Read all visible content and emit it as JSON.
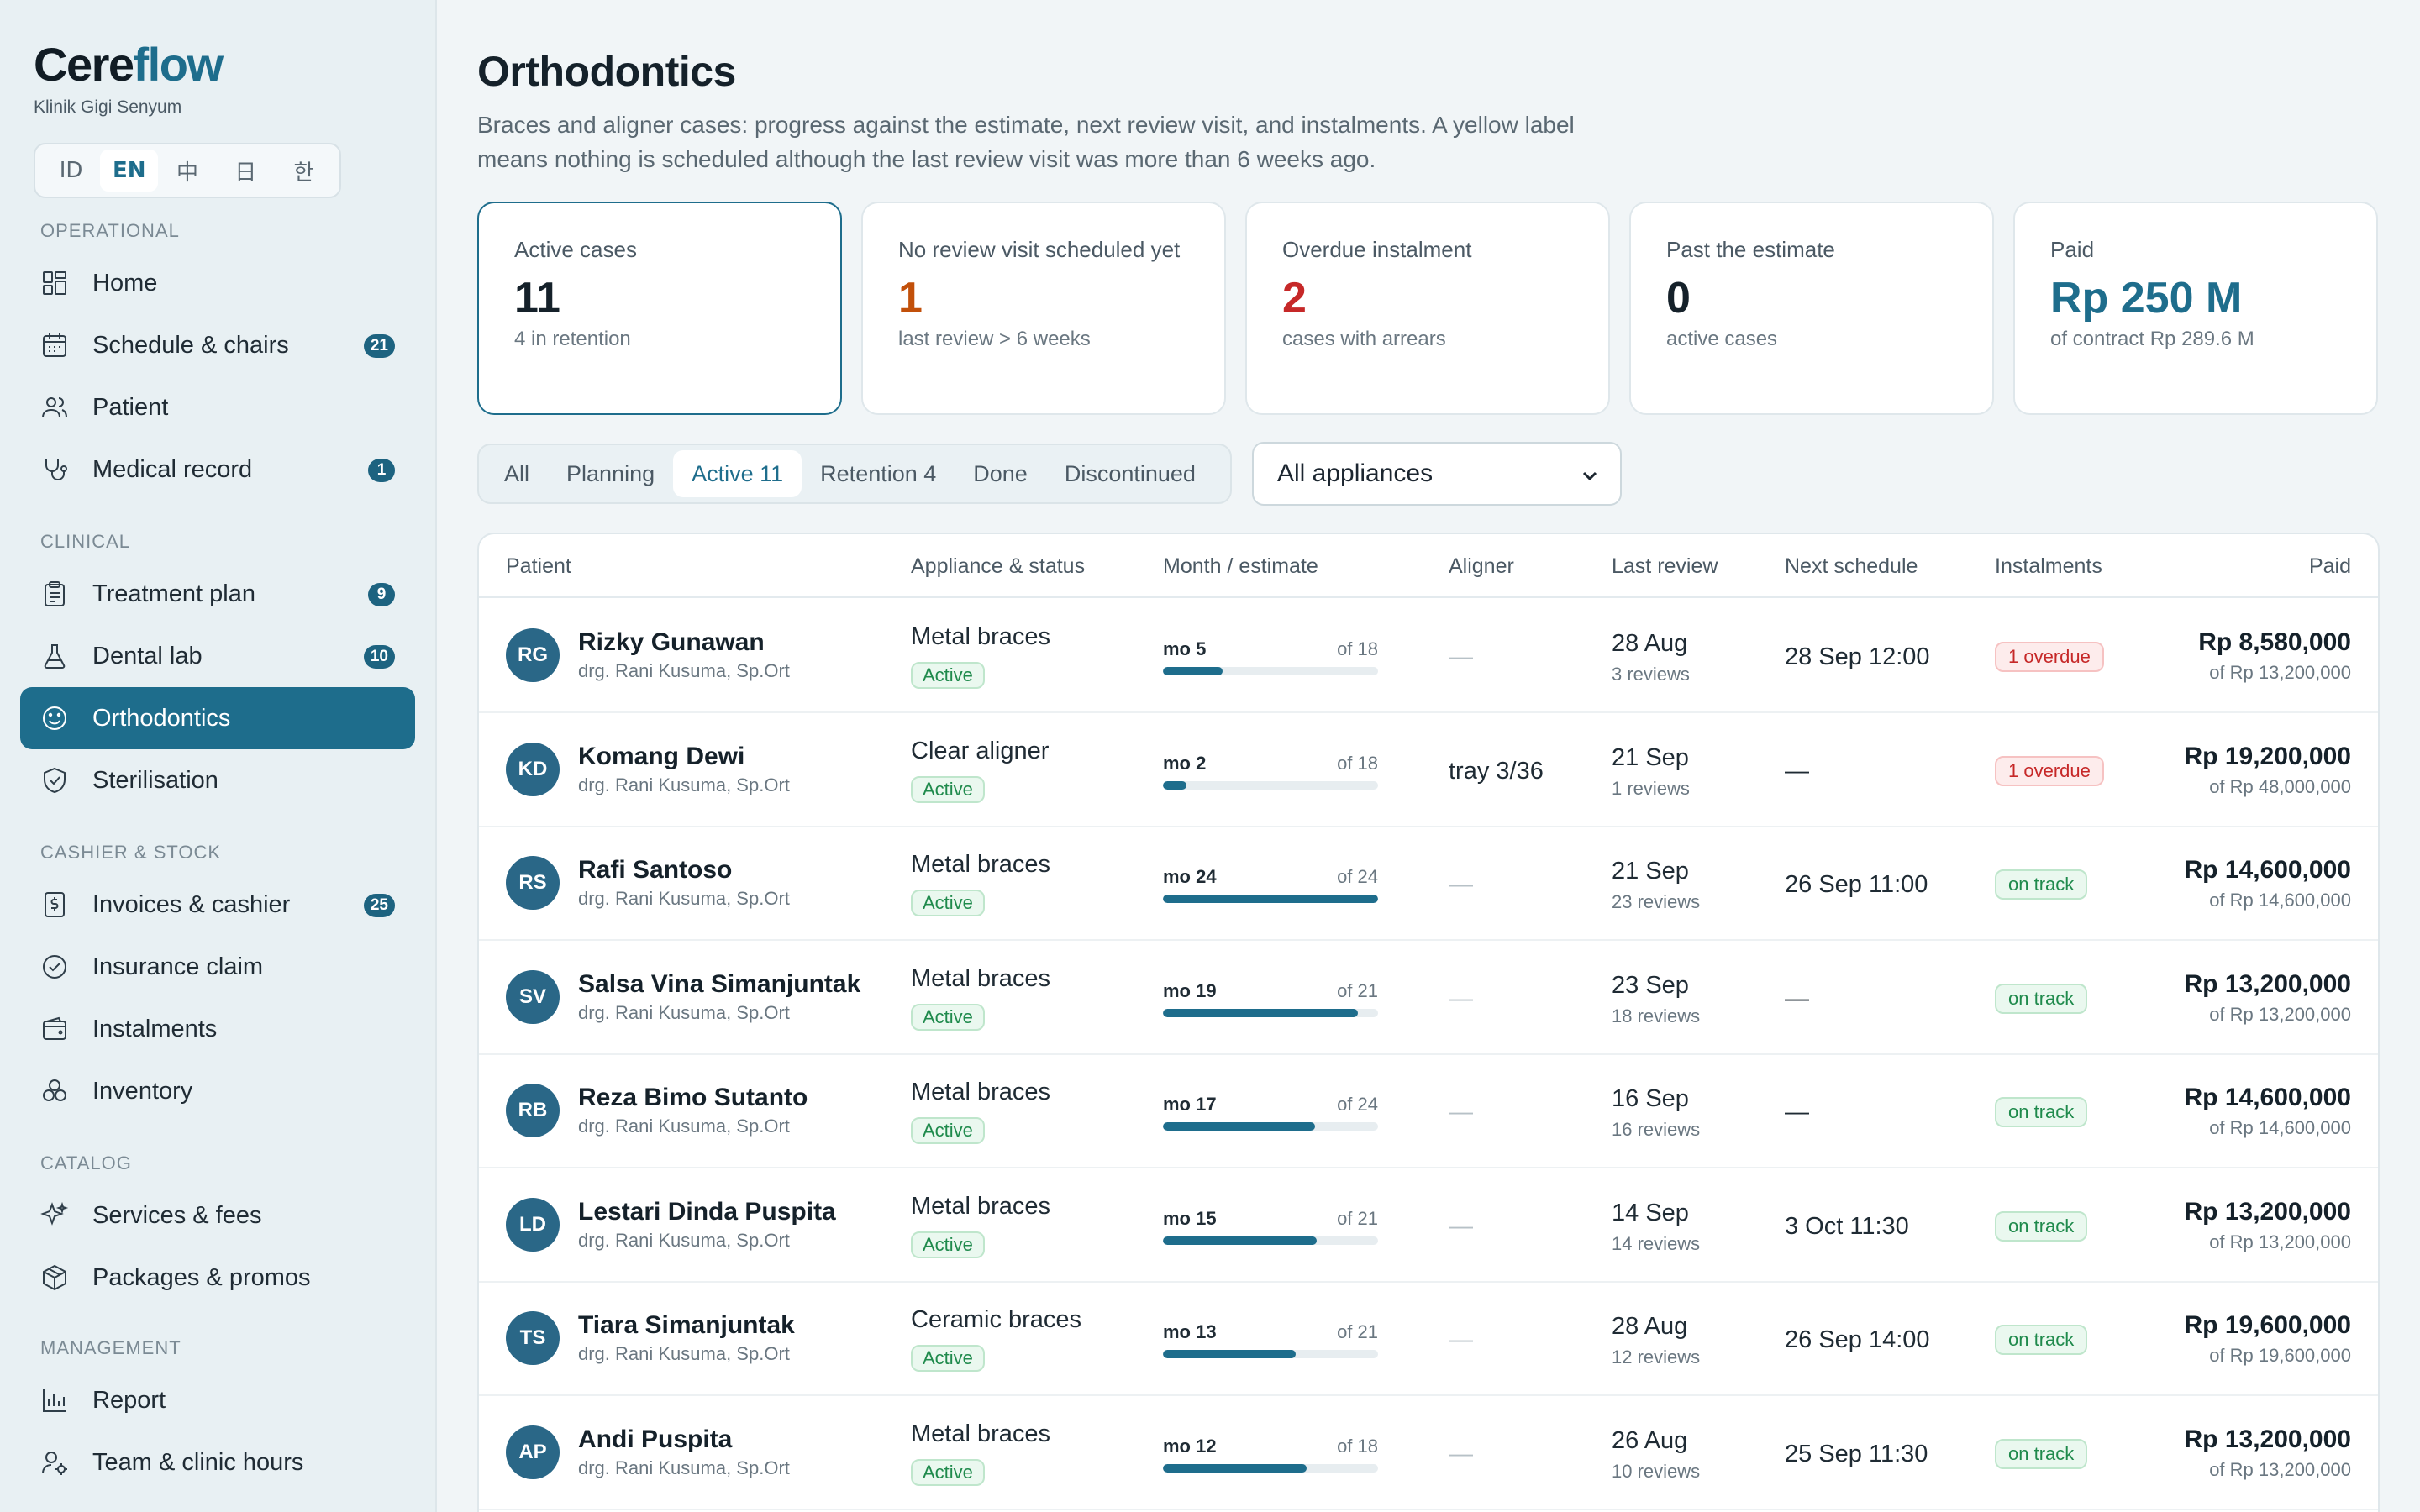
{
  "brand": {
    "name_part1": "Cere",
    "name_part2": "flow",
    "clinic": "Klinik Gigi Senyum"
  },
  "languages": [
    {
      "label": "ID",
      "active": false
    },
    {
      "label": "EN",
      "active": true
    },
    {
      "label": "中",
      "active": false
    },
    {
      "label": "日",
      "active": false
    },
    {
      "label": "한",
      "active": false
    }
  ],
  "sidebar": {
    "sections": [
      {
        "title": "OPERATIONAL",
        "items": [
          {
            "label": "Home",
            "icon": "home-grid-icon",
            "badge": ""
          },
          {
            "label": "Schedule & chairs",
            "icon": "calendar-icon",
            "badge": "21"
          },
          {
            "label": "Patient",
            "icon": "users-icon",
            "badge": ""
          },
          {
            "label": "Medical record",
            "icon": "stethoscope-icon",
            "badge": "1"
          }
        ]
      },
      {
        "title": "CLINICAL",
        "items": [
          {
            "label": "Treatment plan",
            "icon": "clipboard-icon",
            "badge": "9"
          },
          {
            "label": "Dental lab",
            "icon": "flask-icon",
            "badge": "10"
          },
          {
            "label": "Orthodontics",
            "icon": "smile-icon",
            "badge": "",
            "active": true
          },
          {
            "label": "Sterilisation",
            "icon": "shield-check-icon",
            "badge": ""
          }
        ]
      },
      {
        "title": "CASHIER & STOCK",
        "items": [
          {
            "label": "Invoices & cashier",
            "icon": "receipt-dollar-icon",
            "badge": "25"
          },
          {
            "label": "Insurance claim",
            "icon": "check-badge-icon",
            "badge": ""
          },
          {
            "label": "Instalments",
            "icon": "wallet-icon",
            "badge": ""
          },
          {
            "label": "Inventory",
            "icon": "boxes-icon",
            "badge": ""
          }
        ]
      },
      {
        "title": "CATALOG",
        "items": [
          {
            "label": "Services & fees",
            "icon": "sparkles-icon",
            "badge": ""
          },
          {
            "label": "Packages & promos",
            "icon": "package-icon",
            "badge": ""
          }
        ]
      },
      {
        "title": "MANAGEMENT",
        "items": [
          {
            "label": "Report",
            "icon": "bar-chart-icon",
            "badge": ""
          },
          {
            "label": "Team & clinic hours",
            "icon": "user-cog-icon",
            "badge": ""
          }
        ]
      }
    ]
  },
  "header": {
    "title": "Orthodontics",
    "description": "Braces and aligner cases: progress against the estimate, next review visit, and instalments. A yellow label means nothing is scheduled although the last review visit was more than 6 weeks ago."
  },
  "kpis": [
    {
      "label": "Active cases",
      "value": "11",
      "sub": "4 in retention",
      "color": "#15212a",
      "selected": true
    },
    {
      "label": "No review visit scheduled yet",
      "value": "1",
      "sub": "last review > 6 weeks",
      "color": "#c2500a",
      "selected": false
    },
    {
      "label": "Overdue instalment",
      "value": "2",
      "sub": "cases with arrears",
      "color": "#c62828",
      "selected": false
    },
    {
      "label": "Past the estimate",
      "value": "0",
      "sub": "active cases",
      "color": "#15212a",
      "selected": false
    },
    {
      "label": "Paid",
      "value": "Rp 250 M",
      "sub": "of contract Rp 289.6 M",
      "color": "#1e6d8c",
      "selected": false
    }
  ],
  "tabs": [
    {
      "label": "All",
      "active": false
    },
    {
      "label": "Planning",
      "active": false
    },
    {
      "label": "Active 11",
      "active": true
    },
    {
      "label": "Retention 4",
      "active": false
    },
    {
      "label": "Done",
      "active": false
    },
    {
      "label": "Discontinued",
      "active": false
    }
  ],
  "filter": {
    "selected": "All appliances"
  },
  "table": {
    "columns": [
      "Patient",
      "Appliance & status",
      "Month / estimate",
      "Aligner",
      "Last review",
      "Next schedule",
      "Instalments",
      "Paid"
    ],
    "rows": [
      {
        "initials": "RG",
        "name": "Rizky Gunawan",
        "doctor": "drg. Rani Kusuma, Sp.Ort",
        "appliance": "Metal braces",
        "status": "Active",
        "month": "mo 5",
        "estimate": "of 18",
        "progress": 0.278,
        "aligner": "—",
        "last_review": "28 Aug",
        "reviews": "3 reviews",
        "next": "28 Sep 12:00",
        "instalment": "1 overdue",
        "inst_state": "overdue",
        "paid": "Rp 8,580,000",
        "contract": "of Rp 13,200,000"
      },
      {
        "initials": "KD",
        "name": "Komang Dewi",
        "doctor": "drg. Rani Kusuma, Sp.Ort",
        "appliance": "Clear aligner",
        "status": "Active",
        "month": "mo 2",
        "estimate": "of 18",
        "progress": 0.111,
        "aligner": "tray 3/36",
        "last_review": "21 Sep",
        "reviews": "1 reviews",
        "next": "—",
        "instalment": "1 overdue",
        "inst_state": "overdue",
        "paid": "Rp 19,200,000",
        "contract": "of Rp 48,000,000"
      },
      {
        "initials": "RS",
        "name": "Rafi Santoso",
        "doctor": "drg. Rani Kusuma, Sp.Ort",
        "appliance": "Metal braces",
        "status": "Active",
        "month": "mo 24",
        "estimate": "of 24",
        "progress": 1.0,
        "aligner": "—",
        "last_review": "21 Sep",
        "reviews": "23 reviews",
        "next": "26 Sep 11:00",
        "instalment": "on track",
        "inst_state": "ok",
        "paid": "Rp 14,600,000",
        "contract": "of Rp 14,600,000"
      },
      {
        "initials": "SV",
        "name": "Salsa Vina Simanjuntak",
        "doctor": "drg. Rani Kusuma, Sp.Ort",
        "appliance": "Metal braces",
        "status": "Active",
        "month": "mo 19",
        "estimate": "of 21",
        "progress": 0.905,
        "aligner": "—",
        "last_review": "23 Sep",
        "reviews": "18 reviews",
        "next": "—",
        "instalment": "on track",
        "inst_state": "ok",
        "paid": "Rp 13,200,000",
        "contract": "of Rp 13,200,000"
      },
      {
        "initials": "RB",
        "name": "Reza Bimo Sutanto",
        "doctor": "drg. Rani Kusuma, Sp.Ort",
        "appliance": "Metal braces",
        "status": "Active",
        "month": "mo 17",
        "estimate": "of 24",
        "progress": 0.708,
        "aligner": "—",
        "last_review": "16 Sep",
        "reviews": "16 reviews",
        "next": "—",
        "instalment": "on track",
        "inst_state": "ok",
        "paid": "Rp 14,600,000",
        "contract": "of Rp 14,600,000"
      },
      {
        "initials": "LD",
        "name": "Lestari Dinda Puspita",
        "doctor": "drg. Rani Kusuma, Sp.Ort",
        "appliance": "Metal braces",
        "status": "Active",
        "month": "mo 15",
        "estimate": "of 21",
        "progress": 0.714,
        "aligner": "—",
        "last_review": "14 Sep",
        "reviews": "14 reviews",
        "next": "3 Oct 11:30",
        "instalment": "on track",
        "inst_state": "ok",
        "paid": "Rp 13,200,000",
        "contract": "of Rp 13,200,000"
      },
      {
        "initials": "TS",
        "name": "Tiara Simanjuntak",
        "doctor": "drg. Rani Kusuma, Sp.Ort",
        "appliance": "Ceramic braces",
        "status": "Active",
        "month": "mo 13",
        "estimate": "of 21",
        "progress": 0.619,
        "aligner": "—",
        "last_review": "28 Aug",
        "reviews": "12 reviews",
        "next": "26 Sep 14:00",
        "instalment": "on track",
        "inst_state": "ok",
        "paid": "Rp 19,600,000",
        "contract": "of Rp 19,600,000"
      },
      {
        "initials": "AP",
        "name": "Andi Puspita",
        "doctor": "drg. Rani Kusuma, Sp.Ort",
        "appliance": "Metal braces",
        "status": "Active",
        "month": "mo 12",
        "estimate": "of 18",
        "progress": 0.667,
        "aligner": "—",
        "last_review": "26 Aug",
        "reviews": "10 reviews",
        "next": "25 Sep 11:30",
        "instalment": "on track",
        "inst_state": "ok",
        "paid": "Rp 13,200,000",
        "contract": "of Rp 13,200,000"
      }
    ]
  }
}
